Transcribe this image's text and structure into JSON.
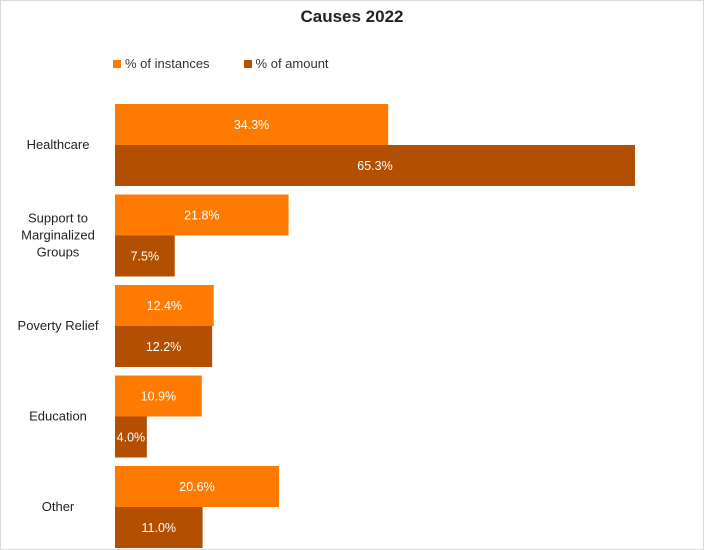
{
  "chart_data": {
    "type": "bar",
    "orientation": "horizontal",
    "title": "Causes 2022",
    "categories": [
      [
        "Healthcare"
      ],
      [
        "Support to",
        "Marginalized",
        "Groups"
      ],
      [
        "Poverty Relief"
      ],
      [
        "Education"
      ],
      [
        "Other"
      ]
    ],
    "series": [
      {
        "name": "% of instances",
        "color": "#ff7a00",
        "values": [
          34.3,
          21.8,
          12.4,
          10.9,
          20.6
        ],
        "labels": [
          "34.3%",
          "21.8%",
          "12.4%",
          "10.9%",
          "20.6%"
        ]
      },
      {
        "name": "% of amount",
        "color": "#b34f00",
        "values": [
          65.3,
          7.5,
          12.2,
          4.0,
          11.0
        ],
        "labels": [
          "65.3%",
          "7.5%",
          "12.2%",
          "4.0%",
          "11.0%"
        ]
      }
    ],
    "legend_position": "top-left",
    "grid": false
  }
}
